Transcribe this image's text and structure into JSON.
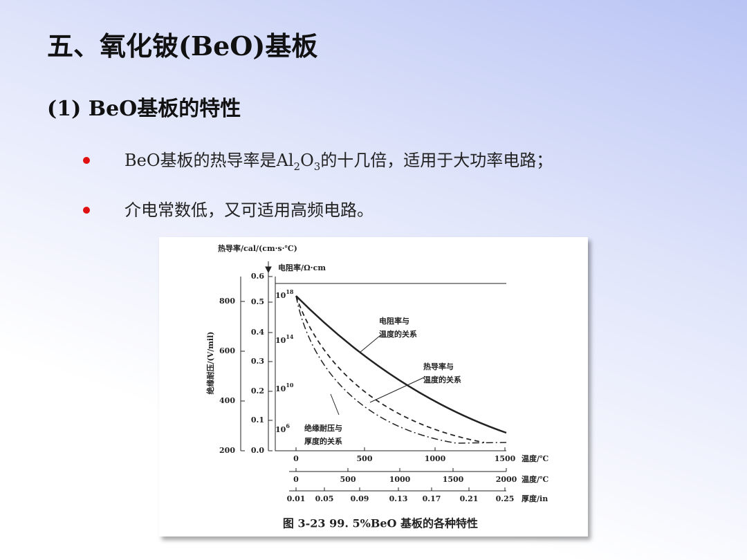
{
  "title": "五、氧化铍(BeO)基板",
  "section": "(1) BeO基板的特性",
  "bullets": [
    [
      "BeO基板的热导率是Al",
      "2",
      "O",
      "3",
      "的十几倍，适用于大功率电路；"
    ],
    [
      "介电常数低，又可适用高频电路。"
    ]
  ],
  "figure": {
    "left_axis_label": "绝缘耐压/(V/mil)",
    "thermal_axis_label": "热导率/cal/(cm·s·℃)",
    "resist_axis_label": "电阻率/Ω·cm",
    "left_ticks": [
      "800",
      "600",
      "400",
      "200"
    ],
    "thermal_ticks": [
      "0.6",
      "0.5",
      "0.4",
      "0.3",
      "0.2",
      "0.1",
      "0.0"
    ],
    "resist_ticks": [
      [
        "10",
        "18"
      ],
      [
        "10",
        "14"
      ],
      [
        "10",
        "10"
      ],
      [
        "10",
        "6"
      ]
    ],
    "curve_labels": [
      [
        "电阻率与",
        "温度的关系"
      ],
      [
        "热导率与",
        "温度的关系"
      ],
      [
        "绝缘耐压与",
        "厚度的关系"
      ]
    ],
    "x_axes": [
      {
        "ticks": [
          "0",
          "500",
          "1000",
          "1500"
        ],
        "label": "温度/℃"
      },
      {
        "ticks": [
          "0",
          "500",
          "1000",
          "1500",
          "2000"
        ],
        "label": "温度/℃"
      },
      {
        "ticks": [
          "0.01",
          "0.05",
          "0.09",
          "0.13",
          "0.17",
          "0.21",
          "0.25"
        ],
        "label": "厚度/in"
      }
    ],
    "caption": "图 3-23   99. 5%BeO 基板的各种特性"
  }
}
